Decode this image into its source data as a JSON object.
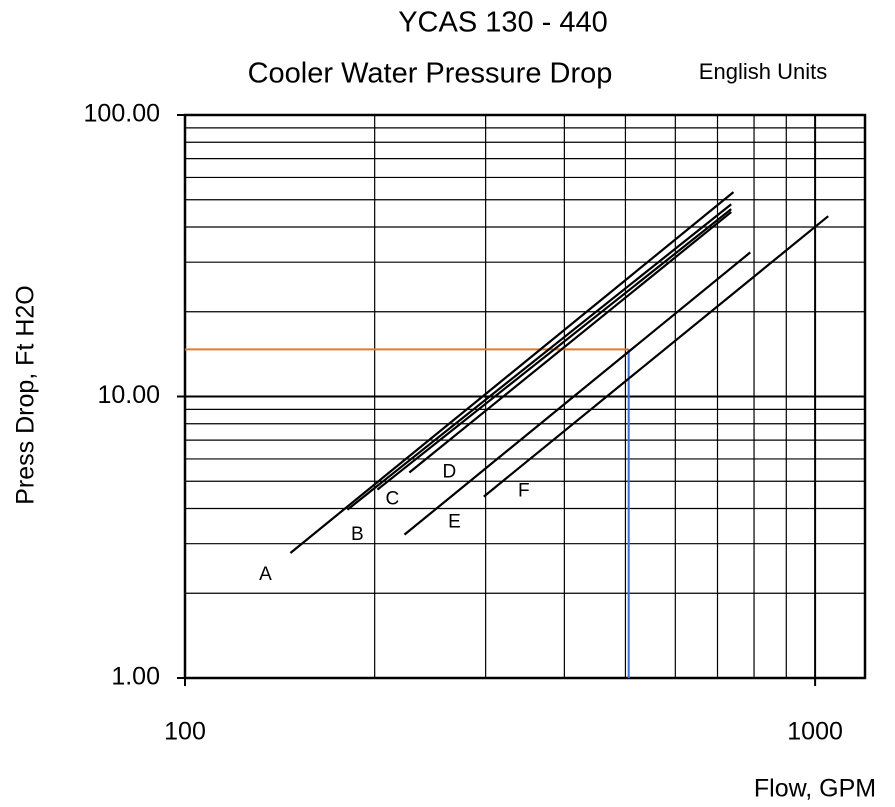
{
  "chart_data": {
    "type": "line",
    "log_x": true,
    "log_y": true,
    "grid": true,
    "title": "YCAS 130 - 440",
    "subtitle": "Cooler Water Pressure Drop",
    "units_note": "English Units",
    "x_label": "Flow, GPM",
    "y_label": "Press Drop, Ft H2O",
    "xlim": [
      100,
      1200
    ],
    "ylim": [
      1,
      100
    ],
    "xticks": [
      100,
      1000
    ],
    "yticks": [
      {
        "value": 1,
        "label": "1.00"
      },
      {
        "value": 10,
        "label": "10.00"
      },
      {
        "value": 100,
        "label": "100.00"
      }
    ],
    "xminor": [
      200,
      300,
      400,
      500,
      600,
      700,
      800,
      900
    ],
    "yminor": [
      2,
      3,
      4,
      5,
      6,
      7,
      8,
      9,
      20,
      30,
      40,
      50,
      60,
      70,
      80,
      90
    ],
    "series": [
      {
        "name": "A",
        "color": "#000000",
        "x": [
          147,
          742
        ],
        "values": [
          2.78,
          53.2
        ]
      },
      {
        "name": "B",
        "color": "#000000",
        "x": [
          181,
          736
        ],
        "values": [
          3.96,
          48.2
        ]
      },
      {
        "name": "C",
        "color": "#000000",
        "x": [
          202,
          736
        ],
        "values": [
          4.67,
          46.3
        ]
      },
      {
        "name": "D",
        "color": "#000000",
        "x": [
          227,
          736
        ],
        "values": [
          5.37,
          45.2
        ]
      },
      {
        "name": "E",
        "color": "#000000",
        "x": [
          223,
          789
        ],
        "values": [
          3.23,
          32.5
        ]
      },
      {
        "name": "F",
        "color": "#000000",
        "x": [
          298,
          1049
        ],
        "values": [
          4.41,
          43.7
        ]
      }
    ],
    "reference": {
      "x": 506,
      "y": 14.7,
      "h_color": "#e07b2a",
      "v_color": "#3a6fd8"
    }
  }
}
